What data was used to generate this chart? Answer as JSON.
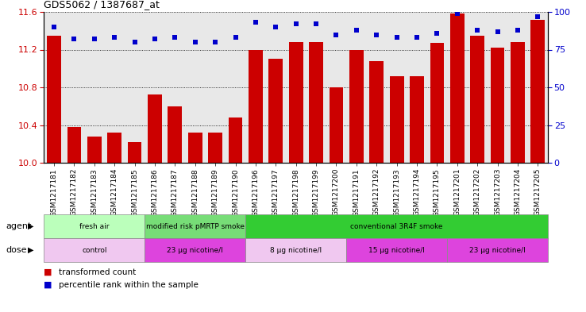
{
  "title": "GDS5062 / 1387687_at",
  "samples": [
    "GSM1217181",
    "GSM1217182",
    "GSM1217183",
    "GSM1217184",
    "GSM1217185",
    "GSM1217186",
    "GSM1217187",
    "GSM1217188",
    "GSM1217189",
    "GSM1217190",
    "GSM1217196",
    "GSM1217197",
    "GSM1217198",
    "GSM1217199",
    "GSM1217200",
    "GSM1217191",
    "GSM1217192",
    "GSM1217193",
    "GSM1217194",
    "GSM1217195",
    "GSM1217201",
    "GSM1217202",
    "GSM1217203",
    "GSM1217204",
    "GSM1217205"
  ],
  "bar_values": [
    11.35,
    10.38,
    10.28,
    10.32,
    10.22,
    10.72,
    10.6,
    10.32,
    10.32,
    10.48,
    11.2,
    11.1,
    11.28,
    11.28,
    10.8,
    11.2,
    11.08,
    10.92,
    10.92,
    11.27,
    11.58,
    11.35,
    11.22,
    11.28,
    11.52
  ],
  "percentile_values": [
    90,
    82,
    82,
    83,
    80,
    82,
    83,
    80,
    80,
    83,
    93,
    90,
    92,
    92,
    85,
    88,
    85,
    83,
    83,
    86,
    99,
    88,
    87,
    88,
    97
  ],
  "ylim_left": [
    10.0,
    11.6
  ],
  "ylim_right": [
    0,
    100
  ],
  "yticks_left": [
    10.0,
    10.4,
    10.8,
    11.2,
    11.6
  ],
  "yticks_right": [
    0,
    25,
    50,
    75,
    100
  ],
  "bar_color": "#cc0000",
  "dot_color": "#0000cc",
  "agent_groups": [
    {
      "label": "fresh air",
      "start": 0,
      "end": 5,
      "color": "#bbffbb"
    },
    {
      "label": "modified risk pMRTP smoke",
      "start": 5,
      "end": 10,
      "color": "#77dd77"
    },
    {
      "label": "conventional 3R4F smoke",
      "start": 10,
      "end": 25,
      "color": "#33cc33"
    }
  ],
  "dose_groups": [
    {
      "label": "control",
      "start": 0,
      "end": 5,
      "color": "#f0c8f0"
    },
    {
      "label": "23 μg nicotine/l",
      "start": 5,
      "end": 10,
      "color": "#dd44dd"
    },
    {
      "label": "8 μg nicotine/l",
      "start": 10,
      "end": 15,
      "color": "#f0c8f0"
    },
    {
      "label": "15 μg nicotine/l",
      "start": 15,
      "end": 20,
      "color": "#dd44dd"
    },
    {
      "label": "23 μg nicotine/l",
      "start": 20,
      "end": 25,
      "color": "#dd44dd"
    }
  ],
  "ax_background": "#e8e8e8",
  "grid_color": "#000000"
}
